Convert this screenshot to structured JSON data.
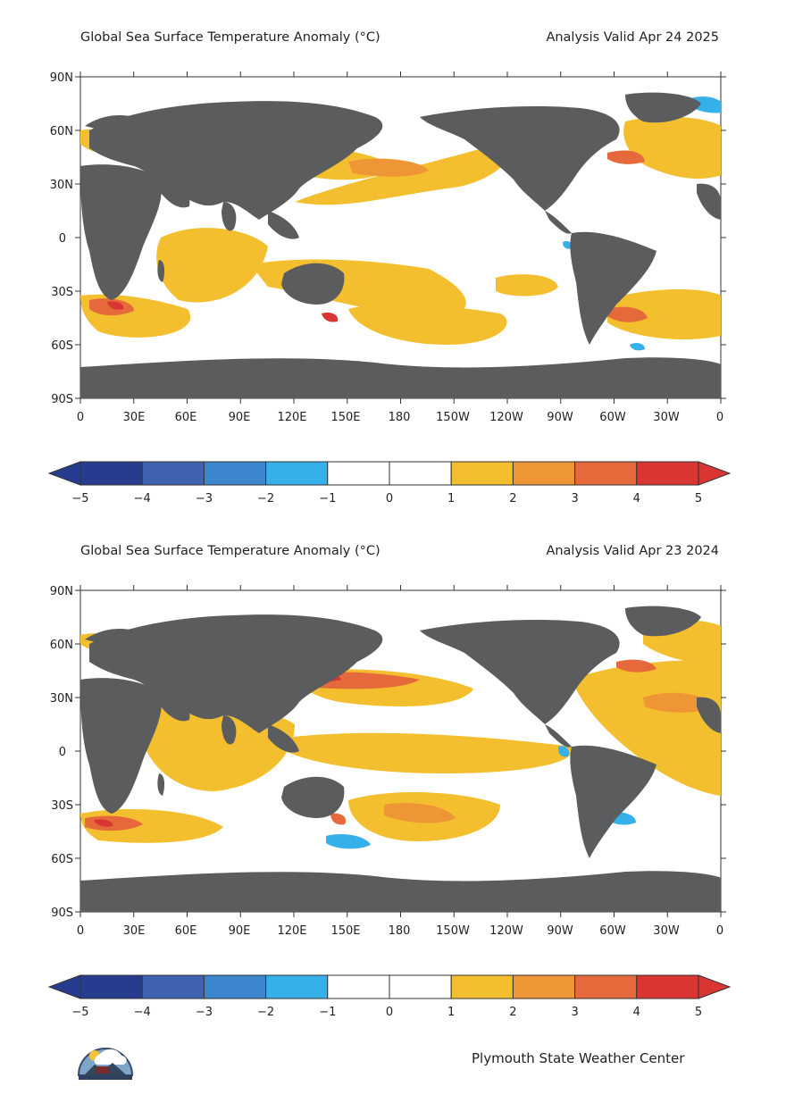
{
  "maps": [
    {
      "title": "Global Sea Surface Temperature Anomaly (°C)",
      "valid": "Analysis Valid Apr 24 2025"
    },
    {
      "title": "Global Sea Surface Temperature Anomaly (°C)",
      "valid": "Analysis Valid Apr 23 2024"
    }
  ],
  "lat_ticks": [
    "90N",
    "60N",
    "30N",
    "0",
    "30S",
    "60S",
    "90S"
  ],
  "lon_ticks": [
    "0",
    "30E",
    "60E",
    "90E",
    "120E",
    "150E",
    "180",
    "150W",
    "120W",
    "90W",
    "60W",
    "30W",
    "0"
  ],
  "colorbar": {
    "labels": [
      "−5",
      "−4",
      "−3",
      "−2",
      "−1",
      "0",
      "1",
      "2",
      "3",
      "4",
      "5"
    ],
    "colors": [
      "#283c8f",
      "#3f63b0",
      "#3b86cc",
      "#36b0e8",
      "#ffffff",
      "#ffffff",
      "#f4bf2e",
      "#ee9636",
      "#e5693a",
      "#d93532"
    ]
  },
  "colors": {
    "land": "#5a5c5e",
    "ocean": "#ffffff",
    "warm1": "#f4bf2e",
    "warm2": "#ee9636",
    "warm3": "#e5693a",
    "warm4": "#d93532",
    "cool": "#36b0e8"
  },
  "credit": "Plymouth State Weather Center"
}
